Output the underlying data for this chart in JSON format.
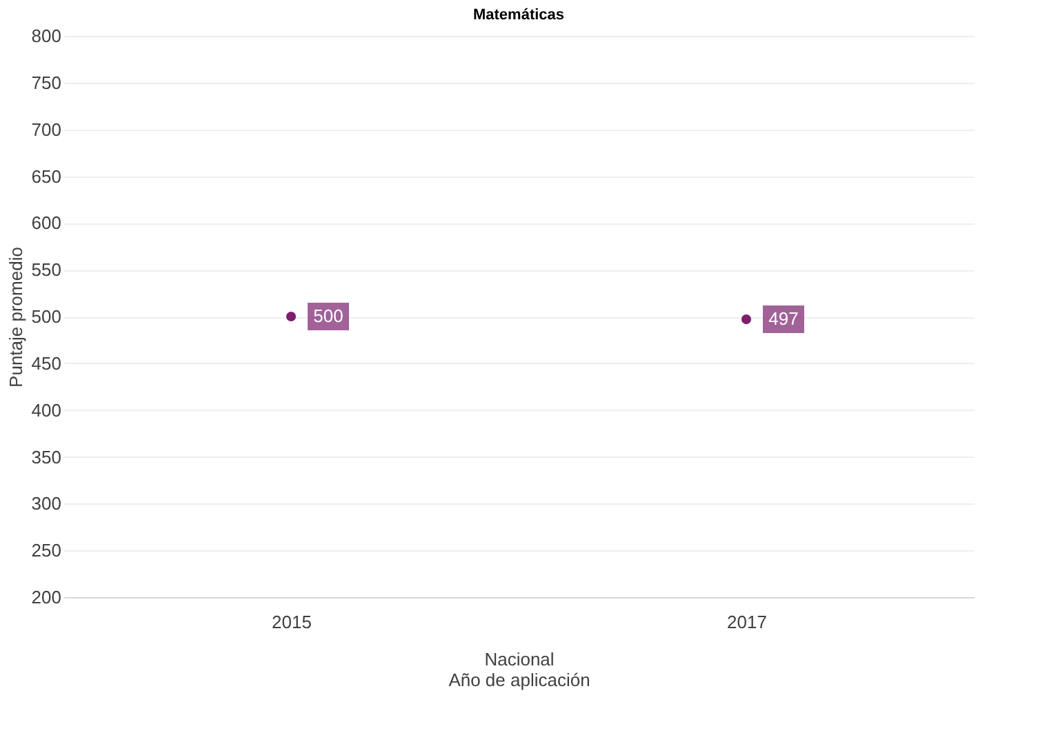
{
  "chart_data": {
    "type": "scatter",
    "title": "Matemáticas",
    "xlabel": "Año de aplicación",
    "ylabel": "Puntaje promedio",
    "annotations": [
      "Nacional"
    ],
    "categories": [
      "2015",
      "2017"
    ],
    "values": [
      500,
      497
    ],
    "colors": [
      "#7b1f6e",
      "#7b1f6e"
    ],
    "ylim": [
      200,
      800
    ],
    "yticks": [
      200,
      250,
      300,
      350,
      400,
      450,
      500,
      550,
      600,
      650,
      700,
      750,
      800
    ],
    "grid": "y",
    "marker": "circle",
    "data_labels": true
  }
}
